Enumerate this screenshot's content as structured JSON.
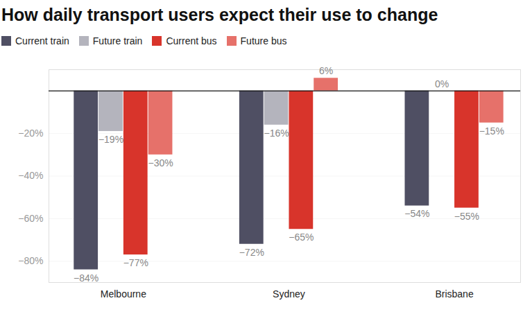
{
  "chart_data": {
    "type": "bar",
    "title": "How daily transport users expect their use to change",
    "categories": [
      "Melbourne",
      "Sydney",
      "Brisbane"
    ],
    "series": [
      {
        "name": "Current train",
        "color": "#4f4f63",
        "values": [
          -84,
          -72,
          -54
        ],
        "value_labels": [
          "−84%",
          "−72%",
          "−54%"
        ]
      },
      {
        "name": "Future train",
        "color": "#b4b4bd",
        "values": [
          -19,
          -16,
          0
        ],
        "value_labels": [
          "−19%",
          "−16%",
          "0%"
        ]
      },
      {
        "name": "Current bus",
        "color": "#d8342b",
        "values": [
          -77,
          -65,
          -55
        ],
        "value_labels": [
          "−77%",
          "−65%",
          "−55%"
        ]
      },
      {
        "name": "Future bus",
        "color": "#e6716a",
        "values": [
          -30,
          6,
          -15
        ],
        "value_labels": [
          "−30%",
          "6%",
          "−15%"
        ]
      }
    ],
    "ylim": [
      -90,
      10
    ],
    "yticks": [
      {
        "value": -80,
        "label": "−80%"
      },
      {
        "value": -60,
        "label": "−60%"
      },
      {
        "value": -40,
        "label": "−40%"
      },
      {
        "value": -20,
        "label": "−20%"
      }
    ],
    "grid": true,
    "legend": "top",
    "data_labels": true
  }
}
